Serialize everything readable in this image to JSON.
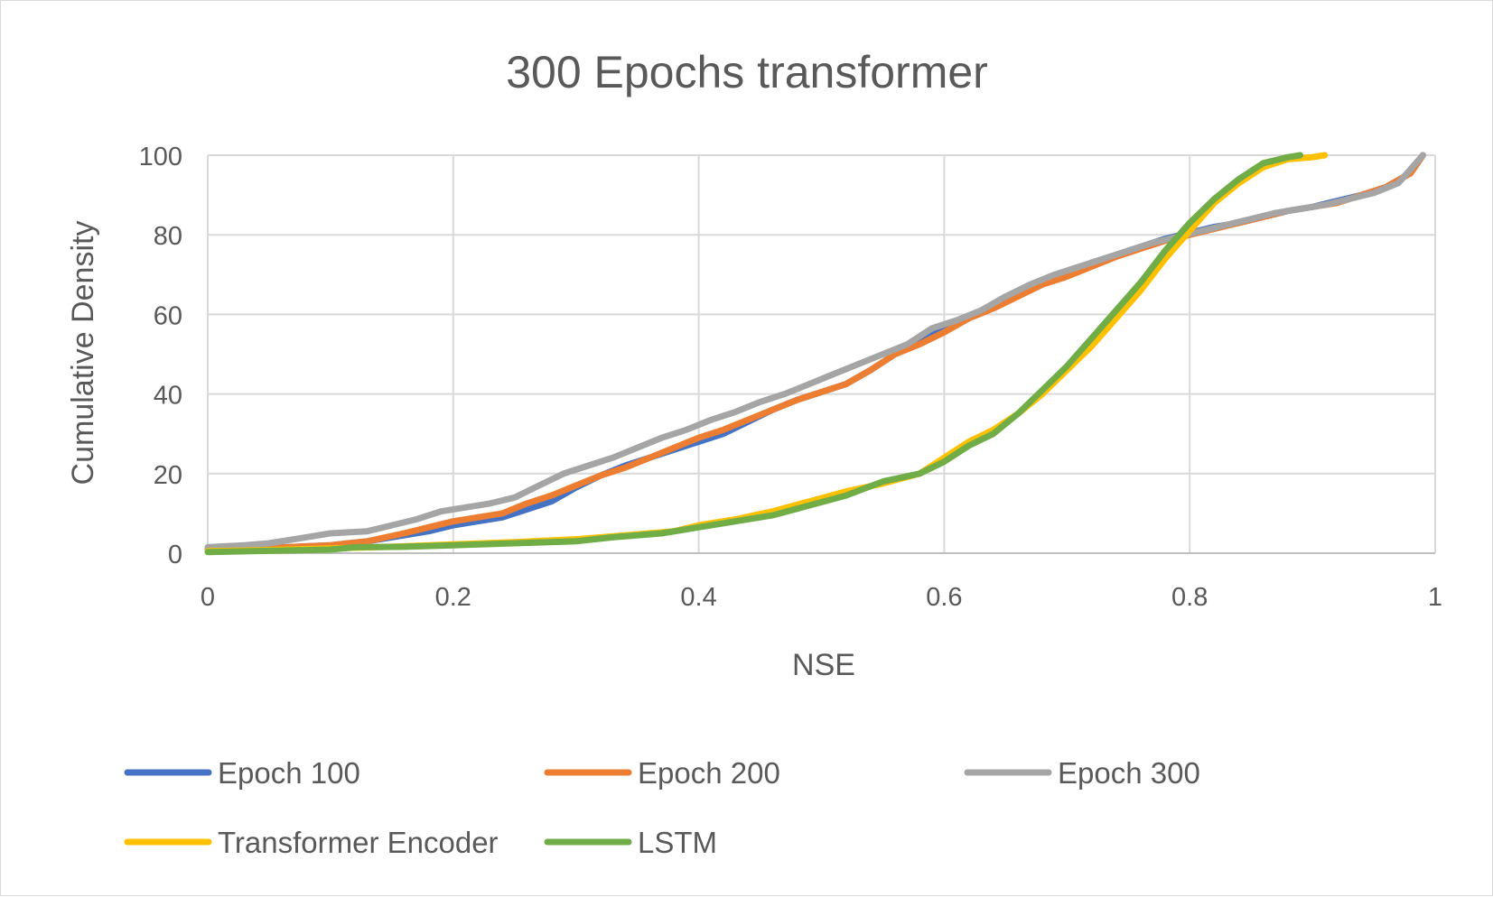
{
  "chart_data": {
    "type": "line",
    "title": "300 Epochs transformer",
    "xlabel": "NSE",
    "ylabel": "Cumulative Density",
    "xlim": [
      0,
      1
    ],
    "ylim": [
      0,
      100
    ],
    "x_ticks": [
      "0",
      "0.2",
      "0.4",
      "0.6",
      "0.8",
      "1"
    ],
    "y_ticks": [
      "0",
      "20",
      "40",
      "60",
      "80",
      "100"
    ],
    "grid": true,
    "legend_position": "bottom",
    "series": [
      {
        "name": "Epoch 100",
        "color": "#4472C4",
        "points": [
          [
            0.0,
            1.0
          ],
          [
            0.05,
            1.3
          ],
          [
            0.1,
            2.0
          ],
          [
            0.13,
            3.0
          ],
          [
            0.16,
            4.5
          ],
          [
            0.18,
            5.5
          ],
          [
            0.2,
            7.0
          ],
          [
            0.22,
            8.0
          ],
          [
            0.24,
            9.0
          ],
          [
            0.26,
            11.0
          ],
          [
            0.28,
            13.0
          ],
          [
            0.3,
            16.5
          ],
          [
            0.32,
            19.5
          ],
          [
            0.34,
            22.0
          ],
          [
            0.36,
            24.0
          ],
          [
            0.38,
            26.0
          ],
          [
            0.4,
            28.0
          ],
          [
            0.42,
            30.0
          ],
          [
            0.44,
            33.0
          ],
          [
            0.46,
            36.0
          ],
          [
            0.48,
            38.5
          ],
          [
            0.5,
            40.5
          ],
          [
            0.52,
            42.5
          ],
          [
            0.54,
            46.0
          ],
          [
            0.56,
            50.0
          ],
          [
            0.58,
            53.0
          ],
          [
            0.6,
            56.5
          ],
          [
            0.62,
            59.5
          ],
          [
            0.64,
            62.0
          ],
          [
            0.66,
            65.0
          ],
          [
            0.68,
            68.0
          ],
          [
            0.7,
            70.5
          ],
          [
            0.72,
            73.0
          ],
          [
            0.74,
            75.0
          ],
          [
            0.76,
            77.0
          ],
          [
            0.78,
            79.0
          ],
          [
            0.8,
            80.5
          ],
          [
            0.82,
            82.0
          ],
          [
            0.84,
            83.0
          ],
          [
            0.86,
            84.5
          ],
          [
            0.88,
            86.0
          ],
          [
            0.9,
            87.0
          ],
          [
            0.92,
            88.5
          ],
          [
            0.94,
            90.0
          ],
          [
            0.96,
            92.0
          ],
          [
            0.98,
            95.5
          ],
          [
            0.99,
            100.0
          ]
        ]
      },
      {
        "name": "Epoch 200",
        "color": "#ED7D31",
        "points": [
          [
            0.0,
            1.0
          ],
          [
            0.05,
            1.3
          ],
          [
            0.1,
            2.0
          ],
          [
            0.13,
            3.0
          ],
          [
            0.16,
            5.0
          ],
          [
            0.18,
            6.5
          ],
          [
            0.2,
            8.0
          ],
          [
            0.22,
            9.0
          ],
          [
            0.24,
            10.0
          ],
          [
            0.26,
            12.5
          ],
          [
            0.28,
            14.5
          ],
          [
            0.3,
            17.0
          ],
          [
            0.32,
            19.5
          ],
          [
            0.34,
            21.5
          ],
          [
            0.36,
            24.0
          ],
          [
            0.38,
            26.5
          ],
          [
            0.4,
            29.0
          ],
          [
            0.42,
            31.0
          ],
          [
            0.44,
            33.5
          ],
          [
            0.46,
            36.0
          ],
          [
            0.48,
            38.5
          ],
          [
            0.5,
            40.5
          ],
          [
            0.52,
            42.5
          ],
          [
            0.54,
            46.0
          ],
          [
            0.56,
            50.0
          ],
          [
            0.58,
            52.5
          ],
          [
            0.6,
            55.5
          ],
          [
            0.62,
            59.0
          ],
          [
            0.64,
            61.5
          ],
          [
            0.66,
            64.5
          ],
          [
            0.68,
            67.5
          ],
          [
            0.7,
            69.5
          ],
          [
            0.72,
            72.0
          ],
          [
            0.74,
            74.5
          ],
          [
            0.76,
            76.5
          ],
          [
            0.78,
            78.5
          ],
          [
            0.8,
            80.0
          ],
          [
            0.82,
            81.5
          ],
          [
            0.84,
            83.0
          ],
          [
            0.86,
            84.5
          ],
          [
            0.88,
            86.0
          ],
          [
            0.9,
            87.0
          ],
          [
            0.92,
            88.0
          ],
          [
            0.94,
            90.0
          ],
          [
            0.96,
            92.0
          ],
          [
            0.98,
            95.5
          ],
          [
            0.99,
            100.0
          ]
        ]
      },
      {
        "name": "Epoch 300",
        "color": "#A5A5A5",
        "points": [
          [
            0.0,
            1.5
          ],
          [
            0.03,
            2.0
          ],
          [
            0.05,
            2.5
          ],
          [
            0.08,
            4.0
          ],
          [
            0.1,
            5.0
          ],
          [
            0.13,
            5.5
          ],
          [
            0.15,
            7.0
          ],
          [
            0.17,
            8.5
          ],
          [
            0.19,
            10.5
          ],
          [
            0.21,
            11.5
          ],
          [
            0.23,
            12.5
          ],
          [
            0.25,
            14.0
          ],
          [
            0.27,
            17.0
          ],
          [
            0.29,
            20.0
          ],
          [
            0.31,
            22.0
          ],
          [
            0.33,
            24.0
          ],
          [
            0.35,
            26.5
          ],
          [
            0.37,
            29.0
          ],
          [
            0.39,
            31.0
          ],
          [
            0.41,
            33.5
          ],
          [
            0.43,
            35.5
          ],
          [
            0.45,
            38.0
          ],
          [
            0.47,
            40.0
          ],
          [
            0.49,
            42.5
          ],
          [
            0.51,
            45.0
          ],
          [
            0.53,
            47.5
          ],
          [
            0.55,
            50.0
          ],
          [
            0.57,
            52.5
          ],
          [
            0.59,
            56.5
          ],
          [
            0.61,
            58.5
          ],
          [
            0.63,
            61.0
          ],
          [
            0.65,
            64.5
          ],
          [
            0.67,
            67.5
          ],
          [
            0.69,
            70.0
          ],
          [
            0.71,
            72.0
          ],
          [
            0.73,
            74.0
          ],
          [
            0.75,
            76.0
          ],
          [
            0.77,
            78.0
          ],
          [
            0.79,
            79.5
          ],
          [
            0.81,
            81.0
          ],
          [
            0.83,
            82.5
          ],
          [
            0.85,
            84.0
          ],
          [
            0.87,
            85.5
          ],
          [
            0.89,
            86.5
          ],
          [
            0.91,
            87.5
          ],
          [
            0.93,
            89.0
          ],
          [
            0.95,
            90.5
          ],
          [
            0.97,
            93.0
          ],
          [
            0.99,
            100.0
          ]
        ]
      },
      {
        "name": "Transformer Encoder",
        "color": "#FFC000",
        "points": [
          [
            0.0,
            0.5
          ],
          [
            0.05,
            0.8
          ],
          [
            0.1,
            1.2
          ],
          [
            0.15,
            1.6
          ],
          [
            0.2,
            2.2
          ],
          [
            0.25,
            2.8
          ],
          [
            0.3,
            3.5
          ],
          [
            0.34,
            4.5
          ],
          [
            0.38,
            5.5
          ],
          [
            0.4,
            7.0
          ],
          [
            0.43,
            8.5
          ],
          [
            0.46,
            10.5
          ],
          [
            0.49,
            13.0
          ],
          [
            0.52,
            15.5
          ],
          [
            0.55,
            17.5
          ],
          [
            0.58,
            20.0
          ],
          [
            0.6,
            24.0
          ],
          [
            0.62,
            28.0
          ],
          [
            0.64,
            31.0
          ],
          [
            0.66,
            35.0
          ],
          [
            0.68,
            40.0
          ],
          [
            0.7,
            46.0
          ],
          [
            0.72,
            52.0
          ],
          [
            0.74,
            59.0
          ],
          [
            0.76,
            66.0
          ],
          [
            0.78,
            74.0
          ],
          [
            0.8,
            81.0
          ],
          [
            0.82,
            88.0
          ],
          [
            0.84,
            93.0
          ],
          [
            0.86,
            97.0
          ],
          [
            0.88,
            99.0
          ],
          [
            0.9,
            99.5
          ],
          [
            0.91,
            100.0
          ]
        ]
      },
      {
        "name": "LSTM",
        "color": "#70AD47",
        "points": [
          [
            0.0,
            0.3
          ],
          [
            0.05,
            0.6
          ],
          [
            0.1,
            0.9
          ],
          [
            0.12,
            1.5
          ],
          [
            0.16,
            1.6
          ],
          [
            0.2,
            2.0
          ],
          [
            0.25,
            2.5
          ],
          [
            0.3,
            3.0
          ],
          [
            0.33,
            4.0
          ],
          [
            0.37,
            5.0
          ],
          [
            0.4,
            6.5
          ],
          [
            0.43,
            8.0
          ],
          [
            0.46,
            9.5
          ],
          [
            0.49,
            12.0
          ],
          [
            0.52,
            14.5
          ],
          [
            0.55,
            18.0
          ],
          [
            0.58,
            20.0
          ],
          [
            0.6,
            23.0
          ],
          [
            0.62,
            27.0
          ],
          [
            0.64,
            30.0
          ],
          [
            0.66,
            35.0
          ],
          [
            0.68,
            41.0
          ],
          [
            0.7,
            47.0
          ],
          [
            0.72,
            54.0
          ],
          [
            0.74,
            61.0
          ],
          [
            0.76,
            68.0
          ],
          [
            0.78,
            76.0
          ],
          [
            0.8,
            83.0
          ],
          [
            0.82,
            89.0
          ],
          [
            0.84,
            94.0
          ],
          [
            0.86,
            98.0
          ],
          [
            0.88,
            99.5
          ],
          [
            0.89,
            100.0
          ]
        ]
      }
    ]
  }
}
